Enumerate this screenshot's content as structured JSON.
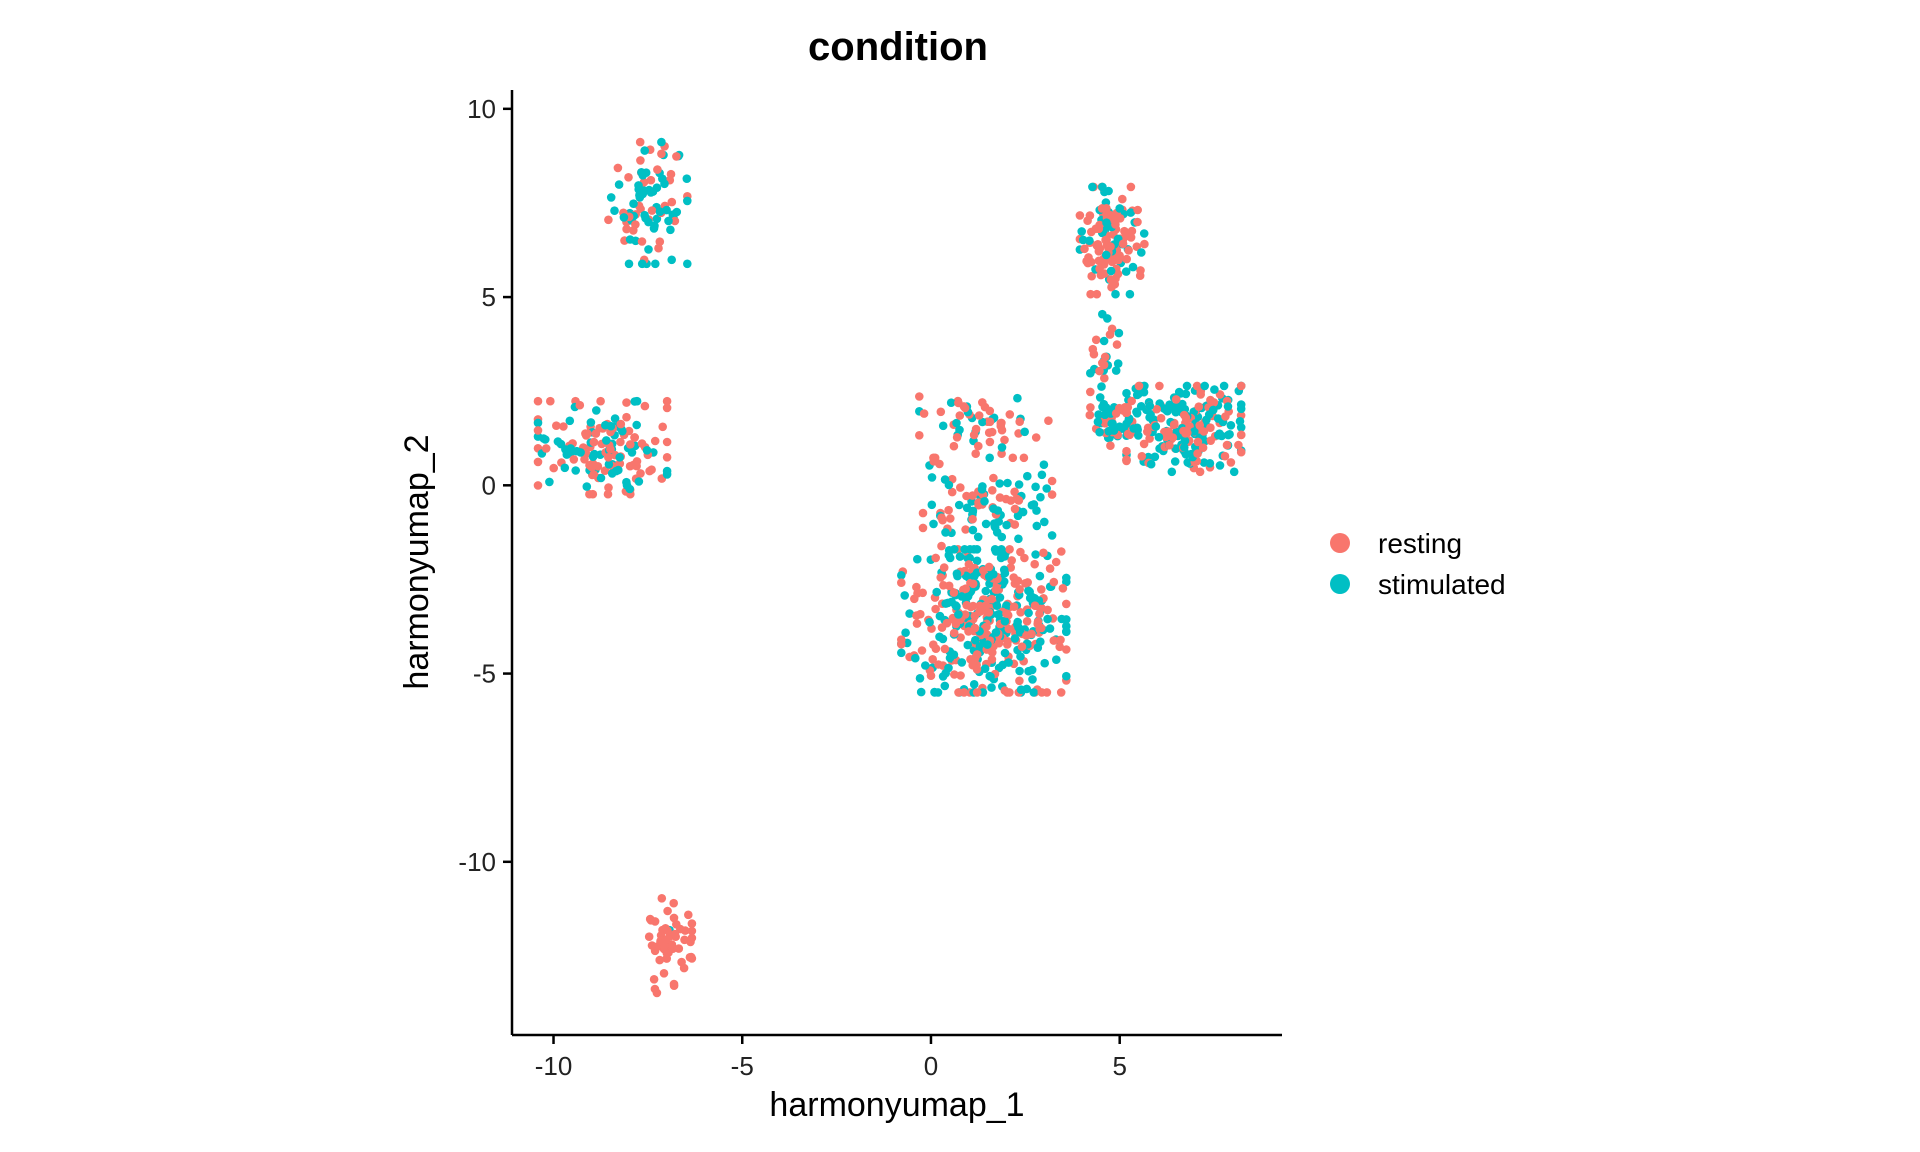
{
  "chart_data": {
    "type": "scatter",
    "title": "condition",
    "xlabel": "harmonyumap_1",
    "ylabel": "harmonyumap_2",
    "xlim": [
      -11.1,
      9.3
    ],
    "ylim": [
      -14.6,
      10.5
    ],
    "xticks": [
      -10,
      -5,
      0,
      5
    ],
    "yticks": [
      10,
      5,
      0,
      -5,
      -10
    ],
    "xtick_labels": [
      "-10",
      "-5",
      "0",
      "5"
    ],
    "ytick_labels": [
      "10",
      "5",
      "0",
      "-5",
      "-10"
    ],
    "legend_position": "right",
    "series": [
      {
        "name": "resting",
        "color": "#F8766D"
      },
      {
        "name": "stimulated",
        "color": "#00BFC4"
      }
    ],
    "clusters": [
      {
        "name_hint": "A",
        "center": [
          -7.5,
          7.5
        ],
        "spread": [
          0.55,
          0.85
        ],
        "count": 90,
        "resting_fraction": 0.35
      },
      {
        "name_hint": "B",
        "center": [
          -8.7,
          1.0
        ],
        "spread": [
          0.9,
          0.65
        ],
        "count": 150,
        "resting_fraction": 0.55
      },
      {
        "name_hint": "C",
        "center": [
          -7.0,
          -12.3
        ],
        "spread": [
          0.35,
          0.7
        ],
        "count": 55,
        "resting_fraction": 0.88
      },
      {
        "name_hint": "D",
        "center": [
          1.4,
          -3.6
        ],
        "spread": [
          1.15,
          1.0
        ],
        "count": 420,
        "resting_fraction": 0.5
      },
      {
        "name_hint": "E",
        "center": [
          1.5,
          -0.6
        ],
        "spread": [
          0.9,
          0.7
        ],
        "count": 110,
        "resting_fraction": 0.4
      },
      {
        "name_hint": "F",
        "center": [
          1.4,
          1.6
        ],
        "spread": [
          0.9,
          0.4
        ],
        "count": 55,
        "resting_fraction": 0.6
      },
      {
        "name_hint": "G",
        "center": [
          4.8,
          6.5
        ],
        "spread": [
          0.45,
          0.75
        ],
        "count": 130,
        "resting_fraction": 0.7
      },
      {
        "name_hint": "H",
        "center": [
          4.6,
          3.4
        ],
        "spread": [
          0.2,
          0.7
        ],
        "count": 30,
        "resting_fraction": 0.35
      },
      {
        "name_hint": "I",
        "center": [
          6.7,
          1.5
        ],
        "spread": [
          0.8,
          0.6
        ],
        "count": 220,
        "resting_fraction": 0.4
      },
      {
        "name_hint": "J",
        "center": [
          4.8,
          1.7
        ],
        "spread": [
          0.35,
          0.4
        ],
        "count": 45,
        "resting_fraction": 0.5
      }
    ]
  }
}
